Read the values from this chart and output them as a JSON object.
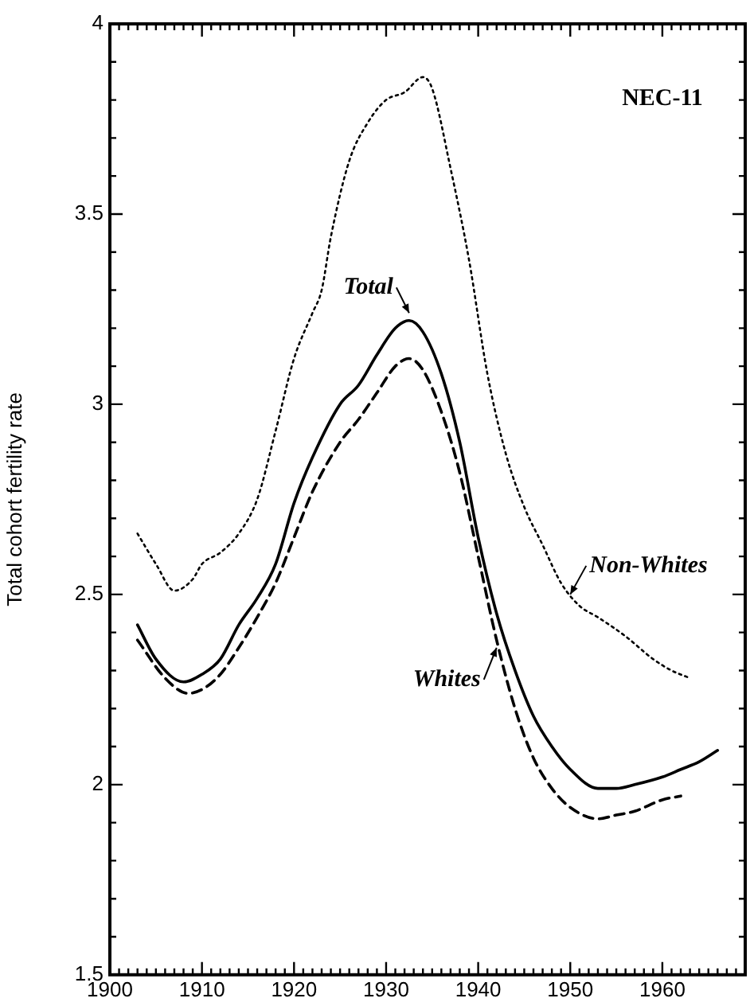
{
  "chart_data": {
    "type": "line",
    "ylabel": "Total cohort fertility rate",
    "annotations": [
      "NEC-11",
      {
        "text": "Total",
        "x": 1932.5,
        "y": 3.24
      },
      {
        "text": "Whites",
        "x": 1942,
        "y": 2.36
      },
      {
        "text": "Non-Whites",
        "x": 1950,
        "y": 2.5
      }
    ],
    "xlim": [
      1900,
      1969
    ],
    "xticks": [
      1900,
      {
        "value": 1901,
        "label": null
      },
      {
        "value": 1902,
        "label": null
      },
      {
        "value": 1903,
        "label": null
      },
      {
        "value": 1904,
        "label": null
      },
      {
        "value": 1905,
        "label": null
      },
      {
        "value": 1906,
        "label": null
      },
      {
        "value": 1907,
        "label": null
      },
      {
        "value": 1908,
        "label": null
      },
      {
        "value": 1909,
        "label": null
      },
      1910,
      {
        "value": 1911,
        "label": null
      },
      {
        "value": 1912,
        "label": null
      },
      {
        "value": 1913,
        "label": null
      },
      {
        "value": 1914,
        "label": null
      },
      {
        "value": 1915,
        "label": null
      },
      {
        "value": 1916,
        "label": null
      },
      {
        "value": 1917,
        "label": null
      },
      {
        "value": 1918,
        "label": null
      },
      {
        "value": 1919,
        "label": null
      },
      1920,
      {
        "value": 1921,
        "label": null
      },
      {
        "value": 1922,
        "label": null
      },
      {
        "value": 1923,
        "label": null
      },
      {
        "value": 1924,
        "label": null
      },
      {
        "value": 1925,
        "label": null
      },
      {
        "value": 1926,
        "label": null
      },
      {
        "value": 1927,
        "label": null
      },
      {
        "value": 1928,
        "label": null
      },
      {
        "value": 1929,
        "label": null
      },
      1930,
      {
        "value": 1931,
        "label": null
      },
      {
        "value": 1932,
        "label": null
      },
      {
        "value": 1933,
        "label": null
      },
      {
        "value": 1934,
        "label": null
      },
      {
        "value": 1935,
        "label": null
      },
      {
        "value": 1936,
        "label": null
      },
      {
        "value": 1937,
        "label": null
      },
      {
        "value": 1938,
        "label": null
      },
      {
        "value": 1939,
        "label": null
      },
      1940,
      {
        "value": 1941,
        "label": null
      },
      {
        "value": 1942,
        "label": null
      },
      {
        "value": 1943,
        "label": null
      },
      {
        "value": 1944,
        "label": null
      },
      {
        "value": 1945,
        "label": null
      },
      {
        "value": 1946,
        "label": null
      },
      {
        "value": 1947,
        "label": null
      },
      {
        "value": 1948,
        "label": null
      },
      {
        "value": 1949,
        "label": null
      },
      1950,
      {
        "value": 1951,
        "label": null
      },
      {
        "value": 1952,
        "label": null
      },
      {
        "value": 1953,
        "label": null
      },
      {
        "value": 1954,
        "label": null
      },
      {
        "value": 1955,
        "label": null
      },
      {
        "value": 1956,
        "label": null
      },
      {
        "value": 1957,
        "label": null
      },
      {
        "value": 1958,
        "label": null
      },
      {
        "value": 1959,
        "label": null
      },
      1960,
      {
        "value": 1961,
        "label": null
      },
      {
        "value": 1962,
        "label": null
      },
      {
        "value": 1963,
        "label": null
      },
      {
        "value": 1964,
        "label": null
      },
      {
        "value": 1965,
        "label": null
      },
      {
        "value": 1966,
        "label": null
      },
      {
        "value": 1967,
        "label": null
      },
      {
        "value": 1968,
        "label": null
      }
    ],
    "ylim": [
      1.5,
      4
    ],
    "yticks": [
      1.5,
      {
        "value": 1.6,
        "label": null
      },
      {
        "value": 1.7,
        "label": null
      },
      {
        "value": 1.8,
        "label": null
      },
      {
        "value": 1.9,
        "label": null
      },
      2,
      {
        "value": 2.1,
        "label": null
      },
      {
        "value": 2.2,
        "label": null
      },
      {
        "value": 2.3,
        "label": null
      },
      {
        "value": 2.4,
        "label": null
      },
      2.5,
      {
        "value": 2.6,
        "label": null
      },
      {
        "value": 2.7,
        "label": null
      },
      {
        "value": 2.8,
        "label": null
      },
      {
        "value": 2.9,
        "label": null
      },
      3,
      {
        "value": 3.1,
        "label": null
      },
      {
        "value": 3.2,
        "label": null
      },
      {
        "value": 3.3,
        "label": null
      },
      {
        "value": 3.4,
        "label": null
      },
      3.5,
      {
        "value": 3.6,
        "label": null
      },
      {
        "value": 3.7,
        "label": null
      },
      {
        "value": 3.8,
        "label": null
      },
      {
        "value": 3.9,
        "label": null
      },
      4
    ],
    "legend": false,
    "marker": "none",
    "series": [
      {
        "color": "#000000",
        "line_style": "solid",
        "x": [
          1903,
          1905,
          1908,
          1910,
          1912,
          1914,
          1916,
          1918,
          1920,
          1922,
          1925,
          1927,
          1929,
          1931,
          1932.5,
          1934,
          1936,
          1938,
          1940,
          1942,
          1944,
          1946,
          1948,
          1950,
          1953,
          1955,
          1957,
          1960,
          1962,
          1964,
          1966
        ],
        "values": [
          2.42,
          2.33,
          2.27,
          2.29,
          2.33,
          2.42,
          2.49,
          2.58,
          2.74,
          2.86,
          3.0,
          3.05,
          3.13,
          3.2,
          3.22,
          3.19,
          3.08,
          2.9,
          2.65,
          2.45,
          2.3,
          2.18,
          2.1,
          2.04,
          1.99,
          1.99,
          2.0,
          2.02,
          2.04,
          2.06,
          2.09
        ]
      },
      {
        "color": "#000000",
        "line_style": "dashed",
        "x": [
          1903,
          1906,
          1908.5,
          1910,
          1912,
          1914,
          1916,
          1918,
          1920,
          1922,
          1925,
          1927,
          1929,
          1931,
          1932.5,
          1934,
          1936,
          1938,
          1940,
          1942,
          1944,
          1946,
          1948,
          1950,
          1953,
          1955,
          1957,
          1960,
          1962
        ],
        "values": [
          2.38,
          2.28,
          2.24,
          2.25,
          2.29,
          2.36,
          2.44,
          2.53,
          2.65,
          2.77,
          2.9,
          2.96,
          3.03,
          3.1,
          3.12,
          3.09,
          2.98,
          2.82,
          2.6,
          2.38,
          2.2,
          2.07,
          1.99,
          1.94,
          1.91,
          1.92,
          1.93,
          1.96,
          1.97
        ]
      },
      {
        "color": "#000000",
        "line_style": "dotted",
        "x": [
          1903,
          1905,
          1907,
          1909,
          1910,
          1912,
          1914,
          1916,
          1918,
          1920,
          1922,
          1923,
          1924,
          1926,
          1928,
          1930,
          1932,
          1934,
          1935,
          1937,
          1939,
          1941,
          1943,
          1945,
          1947,
          1949,
          1951,
          1953,
          1956,
          1959,
          1961,
          1963
        ],
        "values": [
          2.66,
          2.58,
          2.51,
          2.54,
          2.58,
          2.61,
          2.66,
          2.75,
          2.93,
          3.12,
          3.24,
          3.3,
          3.44,
          3.64,
          3.74,
          3.8,
          3.82,
          3.86,
          3.83,
          3.62,
          3.38,
          3.08,
          2.87,
          2.73,
          2.63,
          2.53,
          2.47,
          2.44,
          2.39,
          2.33,
          2.3,
          2.28
        ]
      }
    ]
  }
}
